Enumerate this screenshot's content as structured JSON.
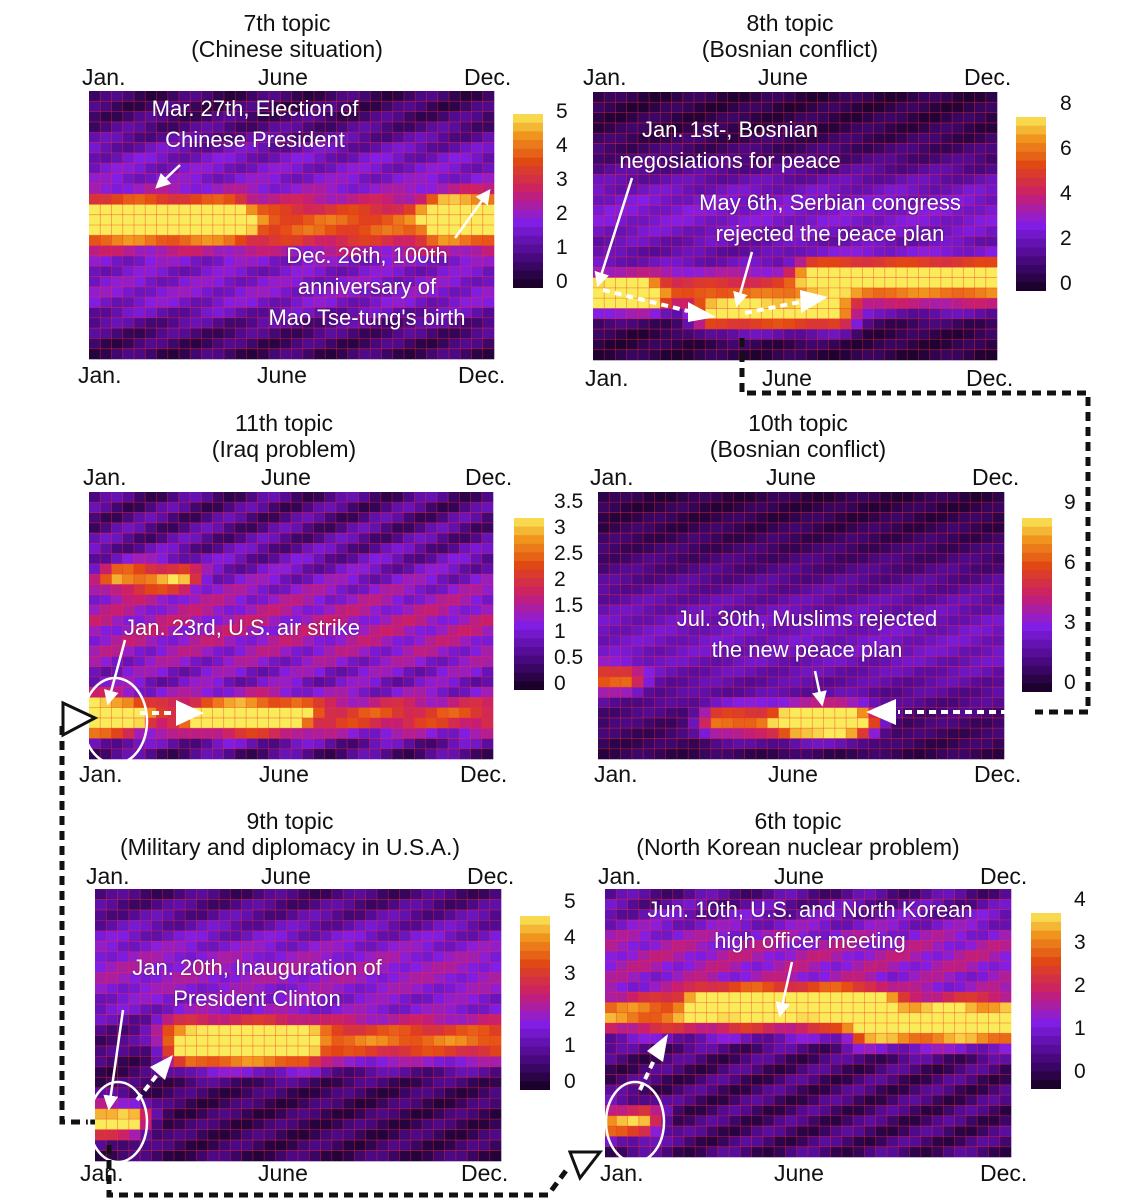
{
  "chart_data": [
    {
      "type": "heatmap",
      "title": "7th topic",
      "subtitle": "(Chinese situation)",
      "top_labels": [
        "Jan.",
        "June",
        "Dec."
      ],
      "bottom_labels": [
        "Jan.",
        "June",
        "Dec."
      ],
      "colorbar": {
        "ticks": [
          "5",
          "4",
          "3",
          "2",
          "1",
          "0"
        ],
        "min": 0,
        "max": 5
      },
      "annotations": [
        {
          "lines": [
            "Mar. 27th, Election  of",
            "Chinese President"
          ]
        },
        {
          "lines": [
            "Dec. 26th, 100th",
            "anniversary of",
            "Mao Tse-tung's birth"
          ]
        }
      ],
      "bands": [
        {
          "row": 0.5,
          "width": 0.11,
          "from": 0.0,
          "to": 1.0,
          "peak": 3.2
        },
        {
          "row": 0.48,
          "width": 0.06,
          "from": 0.0,
          "to": 0.35,
          "peak": 5.0
        },
        {
          "row": 0.47,
          "width": 0.07,
          "from": 0.88,
          "to": 1.0,
          "peak": 4.6
        },
        {
          "row": 0.28,
          "width": 0.14,
          "from": 0.0,
          "to": 1.0,
          "peak": 1.0
        },
        {
          "row": 0.75,
          "width": 0.12,
          "from": 0.0,
          "to": 1.0,
          "peak": 1.2
        }
      ]
    },
    {
      "type": "heatmap",
      "title": "8th topic",
      "subtitle": "(Bosnian conflict)",
      "top_labels": [
        "Jan.",
        "June",
        "Dec."
      ],
      "bottom_labels": [
        "Jan.",
        "June",
        "Dec."
      ],
      "colorbar": {
        "ticks": [
          "8",
          "6",
          "4",
          "2",
          "0"
        ],
        "min": 0,
        "max": 8
      },
      "annotations": [
        {
          "lines": [
            "Jan. 1st-, Bosnian",
            "negosiations for peace"
          ]
        },
        {
          "lines": [
            "May 6th, Serbian congress",
            "rejected the peace plan"
          ]
        }
      ],
      "bands": [
        {
          "row": 0.74,
          "width": 0.08,
          "from": 0.0,
          "to": 1.0,
          "peak": 4.5
        },
        {
          "row": 0.76,
          "width": 0.05,
          "from": 0.0,
          "to": 0.12,
          "peak": 8.0
        },
        {
          "row": 0.83,
          "width": 0.06,
          "from": 0.3,
          "to": 0.6,
          "peak": 6.5
        },
        {
          "row": 0.68,
          "width": 0.06,
          "from": 0.55,
          "to": 1.0,
          "peak": 5.5
        },
        {
          "row": 0.45,
          "width": 0.2,
          "from": 0.0,
          "to": 1.0,
          "peak": 2.2
        }
      ]
    },
    {
      "type": "heatmap",
      "title": "11th topic",
      "subtitle": "(Iraq problem)",
      "top_labels": [
        "Jan.",
        "June",
        "Dec."
      ],
      "bottom_labels": [
        "Jan.",
        "June",
        "Dec."
      ],
      "colorbar": {
        "ticks": [
          "3.5",
          "3",
          "2.5",
          "2",
          "1.5",
          "1",
          "0.5",
          "0"
        ],
        "min": 0,
        "max": 3.5
      },
      "annotations": [
        {
          "lines": [
            "Jan. 23rd, U.S. air strike"
          ]
        }
      ],
      "bands": [
        {
          "row": 0.84,
          "width": 0.07,
          "from": 0.0,
          "to": 1.0,
          "peak": 1.7
        },
        {
          "row": 0.84,
          "width": 0.06,
          "from": 0.0,
          "to": 0.08,
          "peak": 3.4
        },
        {
          "row": 0.84,
          "width": 0.06,
          "from": 0.3,
          "to": 0.5,
          "peak": 2.2
        },
        {
          "row": 0.32,
          "width": 0.05,
          "from": 0.08,
          "to": 0.22,
          "peak": 2.0
        },
        {
          "row": 0.5,
          "width": 0.25,
          "from": 0.0,
          "to": 1.0,
          "peak": 1.0
        }
      ]
    },
    {
      "type": "heatmap",
      "title": "10th topic",
      "subtitle": "(Bosnian conflict)",
      "top_labels": [
        "Jan.",
        "June",
        "Dec."
      ],
      "bottom_labels": [
        "Jan.",
        "June",
        "Dec."
      ],
      "colorbar": {
        "ticks": [
          "9",
          "6",
          "3",
          "0"
        ],
        "min": 0,
        "max": 9
      },
      "annotations": [
        {
          "lines": [
            "Jul. 30th, Muslims rejected",
            "the new peace plan"
          ]
        }
      ],
      "bands": [
        {
          "row": 0.86,
          "width": 0.06,
          "from": 0.3,
          "to": 0.65,
          "peak": 6.0
        },
        {
          "row": 0.86,
          "width": 0.05,
          "from": 0.5,
          "to": 0.6,
          "peak": 9.0
        },
        {
          "row": 0.7,
          "width": 0.05,
          "from": 0.0,
          "to": 0.06,
          "peak": 5.0
        },
        {
          "row": 0.55,
          "width": 0.3,
          "from": 0.0,
          "to": 1.0,
          "peak": 2.2
        }
      ]
    },
    {
      "type": "heatmap",
      "title": "9th topic",
      "subtitle": "(Military and diplomacy in U.S.A.)",
      "top_labels": [
        "Jan.",
        "June",
        "Dec."
      ],
      "bottom_labels": [
        "Jan.",
        "June",
        "Dec."
      ],
      "colorbar": {
        "ticks": [
          "5",
          "4",
          "3",
          "2",
          "1",
          "0"
        ],
        "min": 0,
        "max": 5
      },
      "annotations": [
        {
          "lines": [
            "Jan. 20th, Inauguration of",
            "President Clinton"
          ]
        }
      ],
      "bands": [
        {
          "row": 0.56,
          "width": 0.08,
          "from": 0.2,
          "to": 1.0,
          "peak": 3.2
        },
        {
          "row": 0.58,
          "width": 0.07,
          "from": 0.25,
          "to": 0.5,
          "peak": 3.8
        },
        {
          "row": 0.85,
          "width": 0.06,
          "from": 0.0,
          "to": 0.08,
          "peak": 5.0
        },
        {
          "row": 0.3,
          "width": 0.2,
          "from": 0.0,
          "to": 1.0,
          "peak": 1.5
        }
      ]
    },
    {
      "type": "heatmap",
      "title": "6th topic",
      "subtitle": "(North Korean nuclear problem)",
      "top_labels": [
        "Jan.",
        "June",
        "Dec."
      ],
      "bottom_labels": [
        "Jan.",
        "June",
        "Dec."
      ],
      "colorbar": {
        "ticks": [
          "4",
          "3",
          "2",
          "1",
          "0"
        ],
        "min": 0,
        "max": 4
      },
      "annotations": [
        {
          "lines": [
            "Jun. 10th, U.S. and North Korean",
            "high officer meeting"
          ]
        }
      ],
      "bands": [
        {
          "row": 0.47,
          "width": 0.07,
          "from": 0.0,
          "to": 1.0,
          "peak": 2.6
        },
        {
          "row": 0.42,
          "width": 0.05,
          "from": 0.25,
          "to": 0.65,
          "peak": 3.8
        },
        {
          "row": 0.52,
          "width": 0.06,
          "from": 0.65,
          "to": 1.0,
          "peak": 3.4
        },
        {
          "row": 0.87,
          "width": 0.06,
          "from": 0.0,
          "to": 0.09,
          "peak": 3.0
        },
        {
          "row": 0.25,
          "width": 0.18,
          "from": 0.0,
          "to": 1.0,
          "peak": 1.2
        }
      ]
    }
  ]
}
